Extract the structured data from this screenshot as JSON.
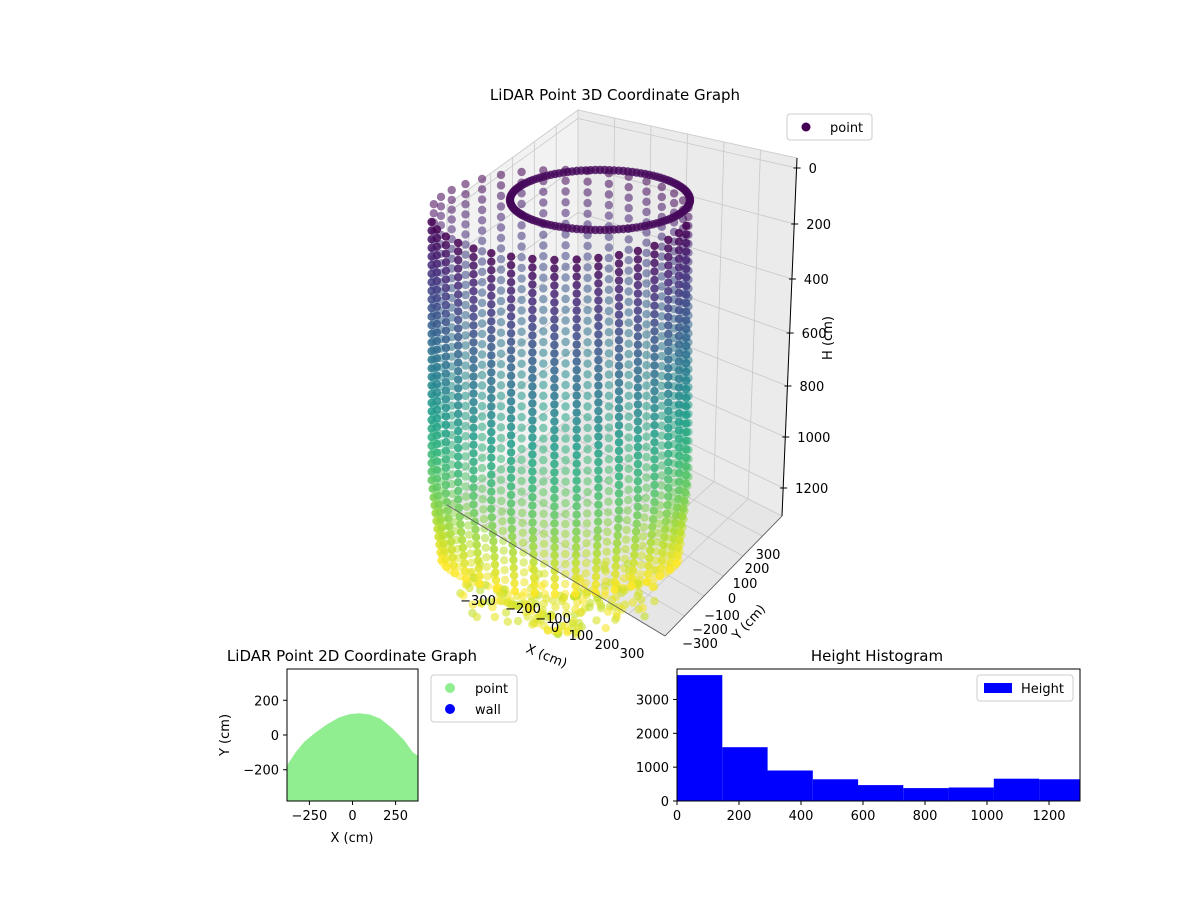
{
  "chart_data": [
    {
      "type": "scatter3d",
      "title": "LiDAR Point 3D Coordinate Graph",
      "xlabel": "X (cm)",
      "ylabel": "Y (cm)",
      "zlabel": "H (cm)",
      "x_ticks": [
        "−300",
        "−200",
        "−100",
        "0",
        "100",
        "200",
        "300"
      ],
      "y_ticks": [
        "−300",
        "−200",
        "−100",
        "0",
        "100",
        "200",
        "300"
      ],
      "z_ticks": [
        "0",
        "200",
        "400",
        "600",
        "800",
        "1000",
        "1200"
      ],
      "xlim": [
        -380,
        380
      ],
      "ylim": [
        -380,
        380
      ],
      "zlim": [
        1300,
        0
      ],
      "z_inverted": true,
      "colormap": "viridis (by height)",
      "legend": {
        "position": "top-right",
        "entries": [
          "point"
        ]
      },
      "grid": true
    },
    {
      "type": "scatter",
      "title": "LiDAR Point 2D Coordinate Graph",
      "xlabel": "X (cm)",
      "ylabel": "Y (cm)",
      "x_ticks": [
        "−250",
        "0",
        "250"
      ],
      "y_ticks": [
        "200",
        "0",
        "−200"
      ],
      "xlim": [
        -380,
        380
      ],
      "ylim": [
        -380,
        380
      ],
      "series": [
        {
          "name": "point",
          "color": "#90ee90",
          "outline": [
            [
              -380,
              -180
            ],
            [
              -370,
              -160
            ],
            [
              -330,
              -100
            ],
            [
              -280,
              -40
            ],
            [
              -220,
              10
            ],
            [
              -150,
              60
            ],
            [
              -80,
              100
            ],
            [
              -20,
              120
            ],
            [
              40,
              125
            ],
            [
              100,
              118
            ],
            [
              160,
              95
            ],
            [
              230,
              40
            ],
            [
              300,
              -30
            ],
            [
              350,
              -100
            ],
            [
              380,
              -120
            ]
          ]
        },
        {
          "name": "wall",
          "color": "#0000ff",
          "points": []
        }
      ],
      "legend": {
        "position": "outside-right",
        "entries": [
          "point",
          "wall"
        ]
      }
    },
    {
      "type": "bar",
      "title": "Height Histogram",
      "x_ticks": [
        "0",
        "200",
        "400",
        "600",
        "800",
        "1000",
        "1200"
      ],
      "y_ticks": [
        "0",
        "1000",
        "2000",
        "3000"
      ],
      "bin_edges": [
        0,
        146,
        292,
        438,
        584,
        730,
        876,
        1022,
        1168,
        1314
      ],
      "values": [
        3720,
        1590,
        900,
        640,
        470,
        380,
        400,
        660,
        640
      ],
      "xlim": [
        0,
        1300
      ],
      "ylim": [
        0,
        3900
      ],
      "series": [
        {
          "name": "Height",
          "color": "#0000ff"
        }
      ],
      "legend": {
        "position": "top-right",
        "entries": [
          "Height"
        ]
      }
    }
  ]
}
